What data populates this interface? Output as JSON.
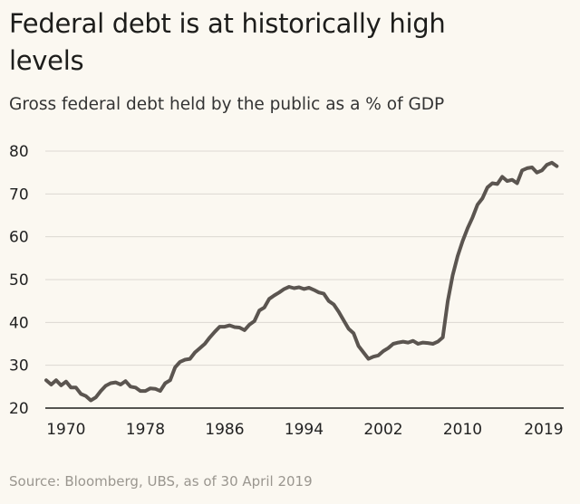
{
  "chart_data": {
    "type": "line",
    "title": "Federal debt is at historically high levels",
    "subtitle": "Gross federal debt held by the public as a % of GDP",
    "source": "Source: Bloomberg, UBS, as of 30 April 2019",
    "xlabel": "",
    "ylabel": "",
    "xlim": [
      1968,
      2019.6
    ],
    "ylim": [
      20,
      80
    ],
    "yticks": [
      20,
      30,
      40,
      50,
      60,
      70,
      80
    ],
    "xticks": [
      {
        "value": 1970,
        "label": "1970"
      },
      {
        "value": 1978,
        "label": "1978"
      },
      {
        "value": 1986,
        "label": "1986"
      },
      {
        "value": 1994,
        "label": "1994"
      },
      {
        "value": 2002,
        "label": "2002"
      },
      {
        "value": 2010,
        "label": "2010"
      },
      {
        "value": 2019,
        "label": "2019"
      }
    ],
    "grid": true,
    "line_color": "#5b5550",
    "series": [
      {
        "name": "Gross federal debt held by the public (% of GDP)",
        "x": [
          1968,
          1968.5,
          1969,
          1969.5,
          1970,
          1970.5,
          1971,
          1971.5,
          1972,
          1972.5,
          1973,
          1973.5,
          1974,
          1974.5,
          1975,
          1975.5,
          1976,
          1976.5,
          1977,
          1977.5,
          1978,
          1978.5,
          1979,
          1979.5,
          1980,
          1980.5,
          1981,
          1981.5,
          1982,
          1982.5,
          1983,
          1983.5,
          1984,
          1984.5,
          1985,
          1985.5,
          1986,
          1986.5,
          1987,
          1987.5,
          1988,
          1988.5,
          1989,
          1989.5,
          1990,
          1990.5,
          1991,
          1991.5,
          1992,
          1992.5,
          1993,
          1993.5,
          1994,
          1994.5,
          1995,
          1995.5,
          1996,
          1996.5,
          1997,
          1997.5,
          1998,
          1998.5,
          1999,
          1999.5,
          2000,
          2000.5,
          2001,
          2001.5,
          2002,
          2002.5,
          2003,
          2003.5,
          2004,
          2004.5,
          2005,
          2005.5,
          2006,
          2006.5,
          2007,
          2007.5,
          2008,
          2008.5,
          2009,
          2009.5,
          2010,
          2010.5,
          2011,
          2011.5,
          2012,
          2012.5,
          2013,
          2013.5,
          2014,
          2014.5,
          2015,
          2015.5,
          2016,
          2016.5,
          2017,
          2017.5,
          2018,
          2018.5,
          2019,
          2019.5
        ],
        "values": [
          26.5,
          25.5,
          26.5,
          25.3,
          26.2,
          24.8,
          24.8,
          23.3,
          22.8,
          21.8,
          22.5,
          24,
          25.2,
          25.8,
          26,
          25.5,
          26.3,
          25,
          24.8,
          24,
          24,
          24.6,
          24.5,
          24,
          25.8,
          26.5,
          29.5,
          30.8,
          31.3,
          31.5,
          33,
          34,
          35,
          36.5,
          37.8,
          39,
          39,
          39.3,
          38.9,
          38.8,
          38.2,
          39.5,
          40.3,
          42.8,
          43.5,
          45.5,
          46.3,
          47,
          47.8,
          48.3,
          48,
          48.2,
          47.8,
          48.1,
          47.6,
          47,
          46.7,
          45,
          44.2,
          42.5,
          40.5,
          38.5,
          37.5,
          34.5,
          33,
          31.5,
          32,
          32.3,
          33.3,
          34,
          35,
          35.3,
          35.5,
          35.3,
          35.7,
          35,
          35.3,
          35.2,
          35,
          35.5,
          36.5,
          45,
          51,
          55.5,
          59,
          62,
          64.5,
          67.5,
          69,
          71.5,
          72.5,
          72.3,
          74,
          73,
          73.3,
          72.5,
          75.5,
          76,
          76.2,
          75,
          75.5,
          76.8,
          77.3,
          76.5
        ]
      }
    ]
  }
}
